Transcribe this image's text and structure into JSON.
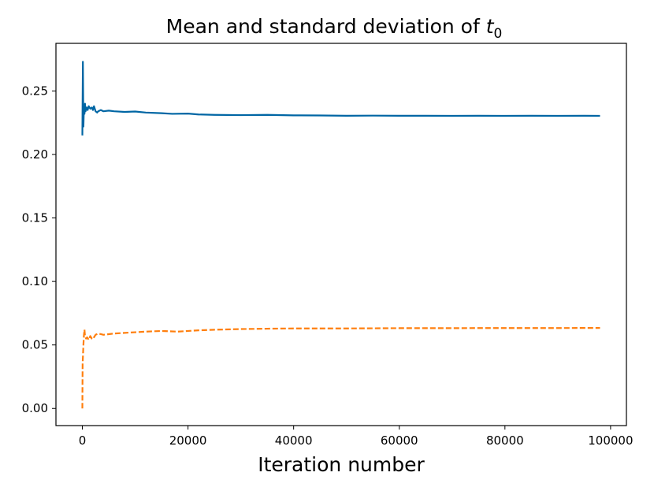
{
  "chart_data": {
    "type": "line",
    "title": "Mean and standard deviation of ",
    "title_math": "t",
    "title_math_sub": "0",
    "xlabel": "Iteration number",
    "ylabel": "",
    "xlim": [
      -5000,
      103000
    ],
    "ylim": [
      -0.0135,
      0.2875
    ],
    "xticks": [
      0,
      20000,
      40000,
      60000,
      80000,
      100000
    ],
    "xtick_labels": [
      "0",
      "20000",
      "40000",
      "60000",
      "80000",
      "100000"
    ],
    "yticks": [
      0.0,
      0.05,
      0.1,
      0.15,
      0.2,
      0.25
    ],
    "ytick_labels": [
      "0.00",
      "0.05",
      "0.10",
      "0.15",
      "0.20",
      "0.25"
    ],
    "grid": false,
    "series": [
      {
        "name": "mean",
        "color": "#0066a4",
        "style": "solid",
        "x": [
          0,
          100,
          200,
          300,
          400,
          500,
          600,
          800,
          1000,
          1200,
          1500,
          1800,
          2000,
          2200,
          2500,
          2800,
          3000,
          3500,
          4000,
          5000,
          6000,
          8000,
          10000,
          12000,
          15000,
          17000,
          20000,
          22000,
          25000,
          30000,
          35000,
          40000,
          45000,
          50000,
          55000,
          60000,
          65000,
          70000,
          75000,
          80000,
          85000,
          90000,
          95000,
          98000
        ],
        "y": [
          0.215,
          0.273,
          0.222,
          0.238,
          0.232,
          0.24,
          0.234,
          0.237,
          0.235,
          0.238,
          0.236,
          0.237,
          0.235,
          0.238,
          0.234,
          0.233,
          0.234,
          0.235,
          0.234,
          0.2345,
          0.234,
          0.2335,
          0.2338,
          0.233,
          0.2325,
          0.232,
          0.2322,
          0.2315,
          0.2312,
          0.231,
          0.2312,
          0.2308,
          0.2307,
          0.2305,
          0.2306,
          0.2305,
          0.2305,
          0.2304,
          0.2305,
          0.2304,
          0.2305,
          0.2304,
          0.2305,
          0.2304
        ]
      },
      {
        "name": "standard deviation",
        "color": "#ff7f0e",
        "style": "dashed",
        "x": [
          0,
          50,
          100,
          200,
          300,
          400,
          500,
          700,
          900,
          1200,
          1500,
          1800,
          2000,
          2200,
          2500,
          3000,
          3500,
          4000,
          5000,
          6000,
          8000,
          10000,
          12000,
          15000,
          18000,
          20000,
          22000,
          25000,
          30000,
          35000,
          40000,
          45000,
          50000,
          55000,
          60000,
          65000,
          70000,
          75000,
          80000,
          85000,
          90000,
          95000,
          98000
        ],
        "y": [
          0.0,
          0.035,
          0.04,
          0.05,
          0.058,
          0.062,
          0.057,
          0.055,
          0.056,
          0.054,
          0.057,
          0.055,
          0.0545,
          0.056,
          0.058,
          0.059,
          0.0585,
          0.058,
          0.0585,
          0.059,
          0.0595,
          0.06,
          0.0605,
          0.061,
          0.0605,
          0.061,
          0.0615,
          0.062,
          0.0625,
          0.0628,
          0.063,
          0.063,
          0.063,
          0.0631,
          0.0632,
          0.0632,
          0.0632,
          0.0633,
          0.0633,
          0.0633,
          0.0633,
          0.0634,
          0.0634
        ]
      }
    ]
  }
}
